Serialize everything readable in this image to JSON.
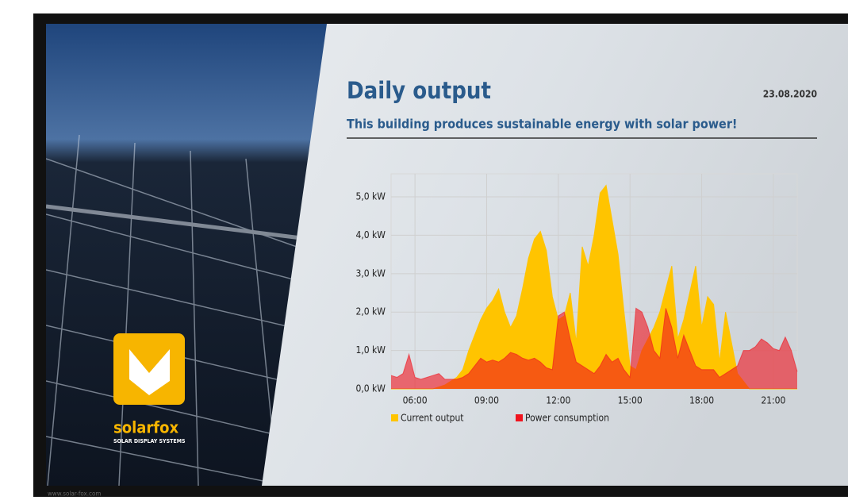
{
  "chart_data": {
    "type": "area",
    "title": "Daily output",
    "subtitle": "This building produces sustainable energy with solar power!",
    "date": "23.08.2020",
    "x": [
      5,
      5.25,
      5.5,
      5.75,
      6,
      6.25,
      6.5,
      6.75,
      7,
      7.25,
      7.5,
      7.75,
      8,
      8.25,
      8.5,
      8.75,
      9,
      9.25,
      9.5,
      9.75,
      10,
      10.25,
      10.5,
      10.75,
      11,
      11.25,
      11.5,
      11.75,
      12,
      12.25,
      12.5,
      12.75,
      13,
      13.25,
      13.5,
      13.75,
      14,
      14.25,
      14.5,
      14.75,
      15,
      15.25,
      15.5,
      15.75,
      16,
      16.25,
      16.5,
      16.75,
      17,
      17.25,
      17.5,
      17.75,
      18,
      18.25,
      18.5,
      18.75,
      19,
      19.25,
      19.5,
      19.75,
      20,
      20.25,
      20.5,
      20.75,
      21,
      21.25,
      21.5,
      21.75,
      22
    ],
    "series": [
      {
        "name": "Current output",
        "color": "#ffc400",
        "values": [
          0,
          0,
          0,
          0,
          0,
          0,
          0,
          0,
          0.05,
          0.1,
          0.2,
          0.3,
          0.5,
          1.0,
          1.4,
          1.8,
          2.1,
          2.3,
          2.6,
          2.0,
          1.6,
          1.9,
          2.6,
          3.4,
          3.9,
          4.1,
          3.6,
          2.4,
          1.8,
          1.9,
          2.5,
          1.2,
          3.7,
          3.2,
          4.0,
          5.1,
          5.3,
          4.4,
          3.5,
          2.0,
          0.6,
          0.5,
          1.0,
          1.3,
          1.6,
          2.0,
          2.6,
          3.2,
          1.3,
          1.8,
          2.5,
          3.2,
          1.6,
          2.4,
          2.2,
          0.7,
          2.0,
          1.2,
          0.4,
          0.2,
          0,
          0,
          0,
          0,
          0,
          0,
          0,
          0,
          0
        ]
      },
      {
        "name": "Power consumption",
        "color": "#f0141e",
        "values": [
          0.35,
          0.3,
          0.4,
          0.9,
          0.3,
          0.25,
          0.3,
          0.35,
          0.4,
          0.25,
          0.25,
          0.25,
          0.3,
          0.4,
          0.6,
          0.8,
          0.7,
          0.75,
          0.7,
          0.8,
          0.95,
          0.9,
          0.8,
          0.75,
          0.8,
          0.7,
          0.55,
          0.5,
          1.9,
          2.0,
          1.3,
          0.7,
          0.6,
          0.5,
          0.4,
          0.6,
          0.9,
          0.7,
          0.8,
          0.5,
          0.3,
          2.1,
          2.0,
          1.6,
          1.0,
          0.8,
          2.1,
          1.6,
          0.8,
          1.4,
          1.0,
          0.6,
          0.5,
          0.5,
          0.5,
          0.3,
          0.4,
          0.5,
          0.6,
          1.0,
          1.0,
          1.1,
          1.3,
          1.2,
          1.05,
          1.0,
          1.35,
          1.0,
          0.45
        ]
      }
    ],
    "xlim": [
      5,
      22
    ],
    "xticks": [
      {
        "value": 6,
        "label": "06:00"
      },
      {
        "value": 9,
        "label": "09:00"
      },
      {
        "value": 12,
        "label": "12:00"
      },
      {
        "value": 15,
        "label": "15:00"
      },
      {
        "value": 18,
        "label": "18:00"
      },
      {
        "value": 21,
        "label": "21:00"
      }
    ],
    "ylim": [
      0,
      5.6
    ],
    "yticks": [
      {
        "value": 0,
        "label": "0,0 kW"
      },
      {
        "value": 1,
        "label": "1,0 kW"
      },
      {
        "value": 2,
        "label": "2,0 kW"
      },
      {
        "value": 3,
        "label": "3,0 kW"
      },
      {
        "value": 4,
        "label": "4,0 kW"
      },
      {
        "value": 5,
        "label": "5,0 kW"
      }
    ],
    "grid": true,
    "legend": "bottom"
  },
  "brand": {
    "name": "solarfox",
    "tagline": "SOLAR DISPLAY SYSTEMS",
    "url": "www.solar-fox.com"
  }
}
